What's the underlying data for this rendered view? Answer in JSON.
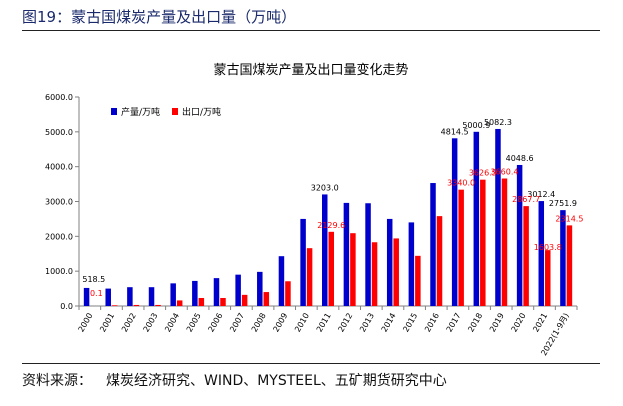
{
  "figure_title": "图19：蒙古国煤炭产量及出口量（万吨）",
  "source": {
    "label": "资料来源：",
    "text": "煤炭经济研究、WIND、MYSTEEL、五矿期货研究中心"
  },
  "chart_data": {
    "type": "bar",
    "title": "蒙古国煤炭产量及出口量变化走势",
    "xlabel": "",
    "ylabel": "",
    "ylim": [
      0,
      6000
    ],
    "yticks": [
      "0.0",
      "1000.0",
      "2000.0",
      "3000.0",
      "4000.0",
      "5000.0",
      "6000.0"
    ],
    "grid": false,
    "legend_position": "top-left",
    "categories": [
      "2000",
      "2001",
      "2002",
      "2003",
      "2004",
      "2005",
      "2006",
      "2007",
      "2008",
      "2009",
      "2010",
      "2011",
      "2012",
      "2013",
      "2014",
      "2015",
      "2016",
      "2017",
      "2018",
      "2019",
      "2020",
      "2021",
      "2022(1-9月)"
    ],
    "series": [
      {
        "name": "产量/万吨",
        "color": "#0000cc",
        "values": [
          518.5,
          500,
          540,
          540,
          650,
          720,
          800,
          900,
          980,
          1430,
          2500,
          3203.0,
          2960,
          2950,
          2500,
          2400,
          3530,
          4814.5,
          5000.9,
          5082.3,
          4048.6,
          3012.4,
          2751.9
        ],
        "labels": {
          "0": "518.5",
          "11": "3203.0",
          "17": "4814.5",
          "18": "5000.9",
          "19": "5082.3",
          "20": "4048.6",
          "21": "3012.4",
          "22": "2751.9"
        }
      },
      {
        "name": "出口/万吨",
        "color": "#ff0000",
        "values": [
          0.1,
          20,
          30,
          30,
          160,
          230,
          230,
          320,
          400,
          710,
          1660,
          2129.6,
          2090,
          1830,
          1940,
          1440,
          2580,
          3340.0,
          3626.5,
          3660.4,
          2867.7,
          1603.8,
          2314.5
        ],
        "labels": {
          "0": "0.1",
          "11": "2129.6",
          "17": "3340.0",
          "18": "3626.5",
          "19": "3660.4",
          "20": "2867.7",
          "21": "1603.8",
          "22": "2314.5"
        }
      }
    ]
  }
}
